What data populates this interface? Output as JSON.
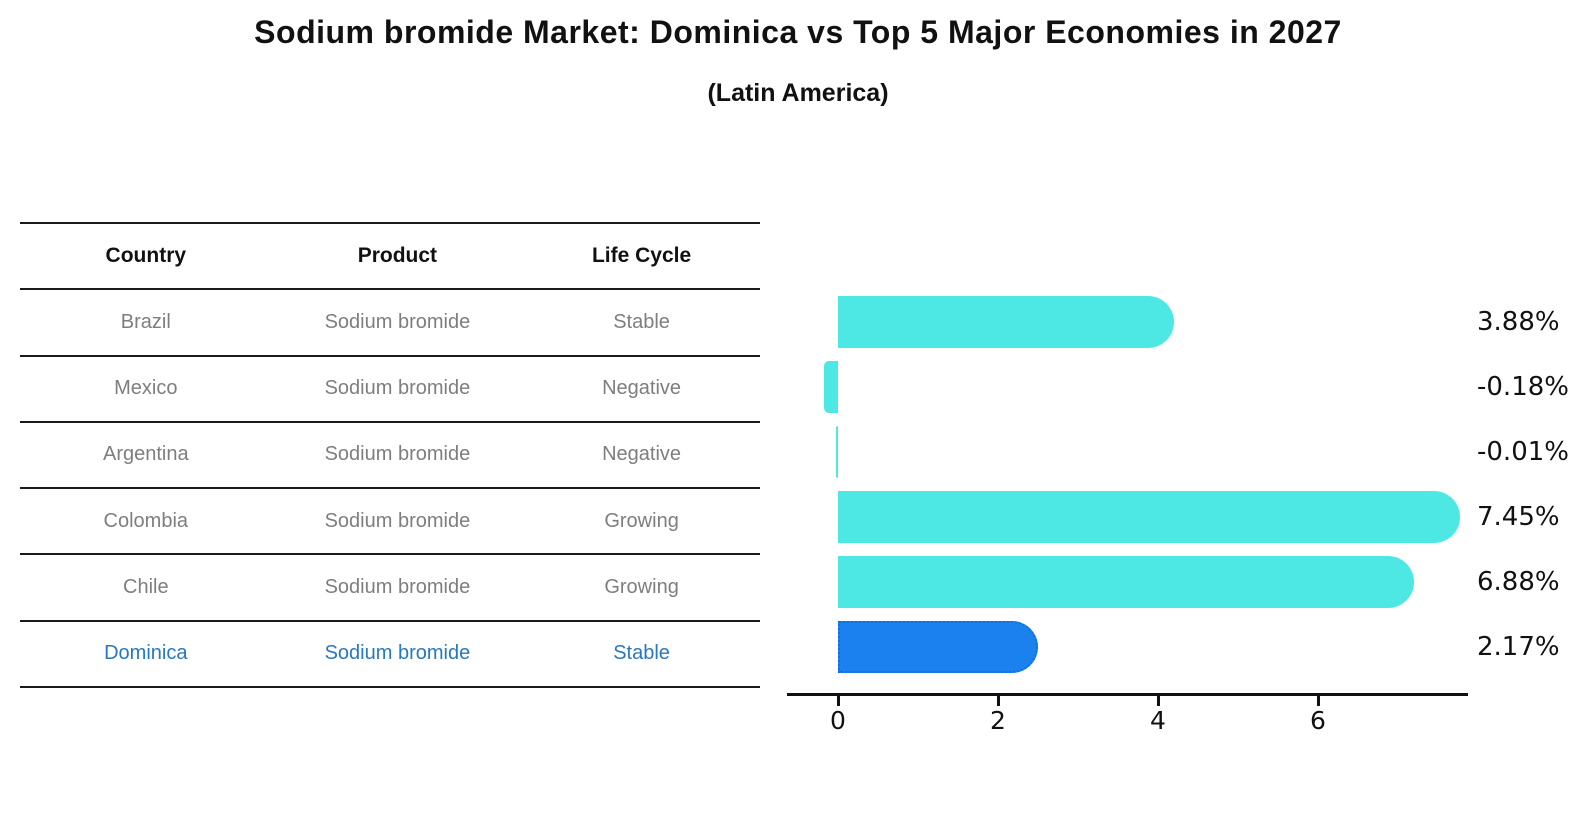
{
  "title": "Sodium bromide Market: Dominica vs Top 5 Major Economies in 2027",
  "subtitle": "(Latin America)",
  "table": {
    "headers": [
      "Country",
      "Product",
      "Life Cycle"
    ],
    "rows": [
      {
        "country": "Brazil",
        "product": "Sodium bromide",
        "life_cycle": "Stable",
        "highlight": false
      },
      {
        "country": "Mexico",
        "product": "Sodium bromide",
        "life_cycle": "Negative",
        "highlight": false
      },
      {
        "country": "Argentina",
        "product": "Sodium bromide",
        "life_cycle": "Negative",
        "highlight": false
      },
      {
        "country": "Colombia",
        "product": "Sodium bromide",
        "life_cycle": "Growing",
        "highlight": false
      },
      {
        "country": "Chile",
        "product": "Sodium bromide",
        "life_cycle": "Growing",
        "highlight": false
      },
      {
        "country": "Dominica",
        "product": "Sodium bromide",
        "life_cycle": "Stable",
        "highlight": true
      }
    ]
  },
  "chart_data": {
    "type": "bar",
    "orientation": "horizontal",
    "categories": [
      "Brazil",
      "Mexico",
      "Argentina",
      "Colombia",
      "Chile",
      "Dominica"
    ],
    "values": [
      3.88,
      -0.18,
      -0.01,
      7.45,
      6.88,
      2.17
    ],
    "value_labels": [
      "3.88%",
      "-0.18%",
      "-0.01%",
      "7.45%",
      "6.88%",
      "2.17%"
    ],
    "x_ticks": [
      0,
      2,
      4,
      6
    ],
    "xlim": [
      -0.64,
      7.88
    ],
    "grid": false,
    "legend": "none",
    "highlight_index": 5,
    "bar_color": "#4de8e4",
    "highlight_bar_color": "#1b81ee",
    "highlight_border_color": "#0f6fdd",
    "highlight_text_color": "#2878c0",
    "axis_color": "#111111"
  }
}
